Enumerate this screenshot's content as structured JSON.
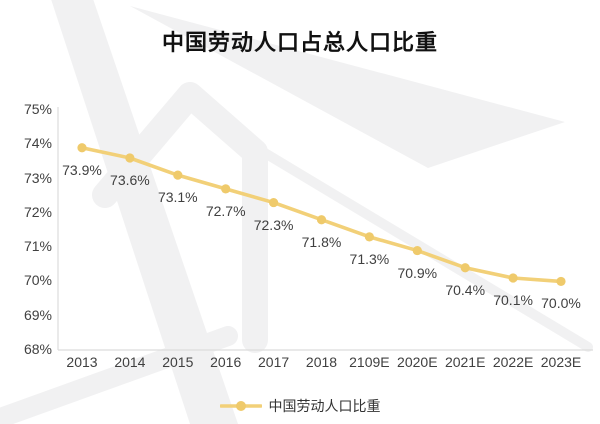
{
  "title": "中国劳动人口占总人口比重",
  "legend": {
    "label": "中国劳动人口比重"
  },
  "colors": {
    "line": "#F2D078",
    "marker": "#EFCA6B",
    "axis": "#DCDCDC",
    "label_text": "#404040",
    "title_text": "#111111",
    "watermark": "#F1F1F2"
  },
  "chart_data": {
    "type": "line",
    "title": "中国劳动人口占总人口比重",
    "categories": [
      "2013",
      "2014",
      "2015",
      "2016",
      "2017",
      "2018",
      "2109E",
      "2020E",
      "2021E",
      "2022E",
      "2023E"
    ],
    "values": [
      73.9,
      73.6,
      73.1,
      72.7,
      72.3,
      71.8,
      71.3,
      70.9,
      70.4,
      70.1,
      70.0
    ],
    "data_labels": [
      "73.9%",
      "73.6%",
      "73.1%",
      "72.7%",
      "72.3%",
      "71.8%",
      "71.3%",
      "70.9%",
      "70.4%",
      "70.1%",
      "70.0%"
    ],
    "xlabel": "",
    "ylabel": "",
    "ylim": [
      68,
      75
    ],
    "y_ticks": [
      "75%",
      "74%",
      "73%",
      "72%",
      "71%",
      "70%",
      "69%",
      "68%"
    ],
    "grid": false,
    "legend_entries": [
      "中国劳动人口比重"
    ],
    "legend_position": "bottom"
  }
}
